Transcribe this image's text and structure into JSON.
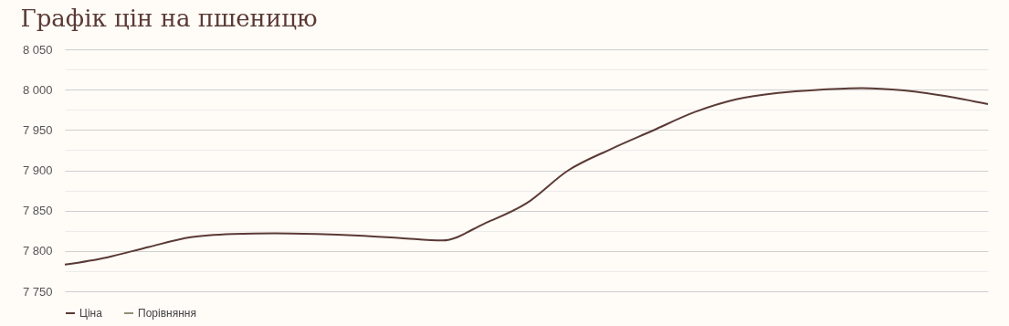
{
  "chart_data": {
    "type": "line",
    "title": "Графік цін на пшеницю",
    "categories": [
      null,
      null,
      null,
      null,
      null,
      null,
      null,
      null,
      null,
      null,
      null,
      null,
      null,
      null,
      null,
      null,
      null,
      null,
      null,
      null,
      null,
      null,
      null
    ],
    "series": [
      {
        "name": "Ціна",
        "color": "#5a3a35",
        "values": [
          7783,
          7792,
          7805,
          7817,
          7821,
          7822,
          7821,
          7819,
          7816,
          7813,
          7834,
          7859,
          7900,
          7926,
          7949,
          7972,
          7988,
          7996,
          8000,
          8002,
          7999,
          7992,
          7982
        ]
      },
      {
        "name": "Порівняння",
        "color": "#8f9279",
        "values": [
          null,
          null,
          null,
          null,
          null,
          null,
          null,
          null,
          null,
          null,
          null,
          null,
          null,
          null,
          null,
          null,
          null,
          null,
          null,
          null,
          null,
          null,
          null
        ]
      }
    ],
    "ylim": [
      7750,
      8050
    ],
    "yticks": [
      {
        "value": 7750,
        "label": "7 750"
      },
      {
        "value": 7775,
        "label": null
      },
      {
        "value": 7800,
        "label": "7 800"
      },
      {
        "value": 7825,
        "label": null
      },
      {
        "value": 7850,
        "label": "7 850"
      },
      {
        "value": 7875,
        "label": null
      },
      {
        "value": 7900,
        "label": "7 900"
      },
      {
        "value": 7925,
        "label": null
      },
      {
        "value": 7950,
        "label": "7 950"
      },
      {
        "value": 7975,
        "label": null
      },
      {
        "value": 8000,
        "label": "8 000"
      },
      {
        "value": 8025,
        "label": null
      },
      {
        "value": 8050,
        "label": "8 050"
      }
    ],
    "grid": "y",
    "legend": "bottom",
    "marker": "none",
    "line_style": "solid",
    "tick_labels": "y"
  }
}
